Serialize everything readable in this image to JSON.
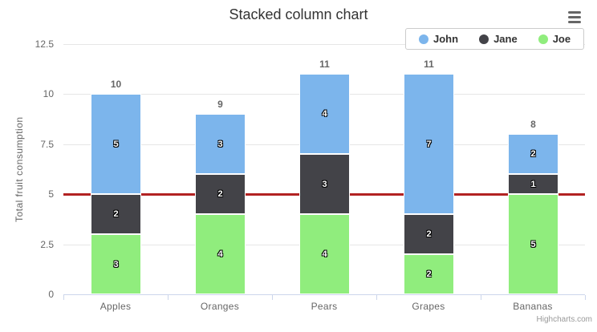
{
  "title": "Stacked column chart",
  "credits": "Highcharts.com",
  "y_axis": {
    "title": "Total fruit consumption"
  },
  "legend": {
    "items": [
      {
        "label": "John",
        "color": "#7cb5ec"
      },
      {
        "label": "Jane",
        "color": "#434348"
      },
      {
        "label": "Joe",
        "color": "#90ed7d"
      }
    ]
  },
  "palette": {
    "grid": "#e6e6e6",
    "axis_line": "#ccd6eb",
    "text": "#666666",
    "title_text": "#333333",
    "credits_text": "#999999"
  },
  "chart_data": {
    "type": "bar",
    "stacked": true,
    "title": "Stacked column chart",
    "categories": [
      "Apples",
      "Oranges",
      "Pears",
      "Grapes",
      "Bananas"
    ],
    "series": [
      {
        "name": "John",
        "color": "#7cb5ec",
        "values": [
          5,
          3,
          4,
          7,
          2
        ]
      },
      {
        "name": "Jane",
        "color": "#434348",
        "values": [
          2,
          2,
          3,
          2,
          1
        ]
      },
      {
        "name": "Joe",
        "color": "#90ed7d",
        "values": [
          3,
          4,
          4,
          2,
          5
        ]
      }
    ],
    "stack_order_bottom_to_top": [
      "Joe",
      "Jane",
      "John"
    ],
    "stack_totals": [
      10,
      9,
      11,
      11,
      8
    ],
    "xlabel": "",
    "ylabel": "Total fruit consumption",
    "ylim": [
      0,
      12.5
    ],
    "yticks": [
      0,
      2.5,
      5,
      7.5,
      10,
      12.5
    ],
    "grid": true,
    "legend_position": "top-right",
    "plot_line": {
      "value": 5,
      "color": "#b22222"
    }
  }
}
